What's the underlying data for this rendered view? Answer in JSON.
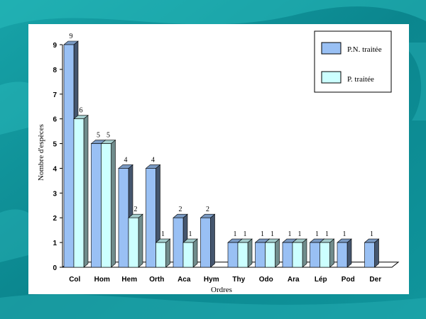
{
  "slide": {
    "colors": {
      "background": "#0f8f97",
      "background_light": "#22b3b8",
      "panel": "#ffffff"
    }
  },
  "chart_data": {
    "type": "bar",
    "categories": [
      "Col",
      "Hom",
      "Hem",
      "Orth",
      "Aca",
      "Hym",
      "Thy",
      "Odo",
      "Ara",
      "Lép",
      "Pod",
      "Der"
    ],
    "series": [
      {
        "name": "P.N. traitée",
        "values": [
          9,
          5,
          4,
          4,
          2,
          2,
          1,
          1,
          1,
          1,
          1,
          1
        ],
        "color": "#99c0f4"
      },
      {
        "name": "P. traitée",
        "values": [
          6,
          5,
          2,
          1,
          1,
          0,
          1,
          1,
          1,
          1,
          0,
          0
        ],
        "color": "#ccffff"
      }
    ],
    "data_labels": [
      [
        "9",
        "5",
        "4",
        "4",
        "2",
        "2",
        "1",
        "1",
        "1",
        "1",
        "1",
        "1"
      ],
      [
        "6",
        "5",
        "2",
        "1",
        "1",
        "",
        "1",
        "1",
        "1",
        "1",
        "",
        ""
      ]
    ],
    "yticks": [
      "0",
      "1",
      "2",
      "3",
      "4",
      "5",
      "6",
      "7",
      "8",
      "9"
    ],
    "ylim": [
      0,
      9
    ],
    "xlabel": "Ordres",
    "ylabel": "Nombre d'espèces",
    "legend_position": "top-right",
    "grid": false,
    "bar_style": "3d"
  }
}
